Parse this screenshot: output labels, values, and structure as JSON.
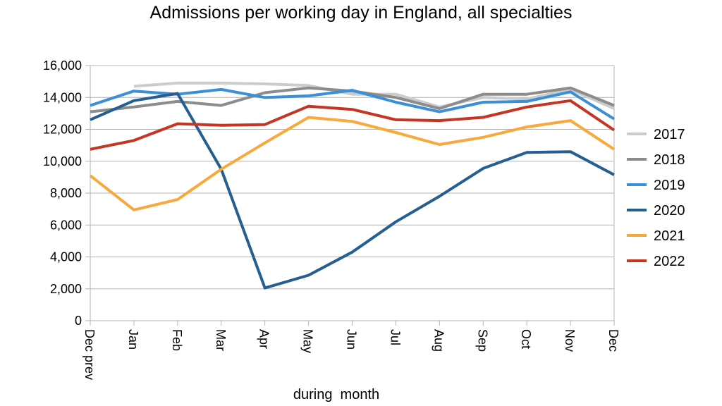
{
  "chart_data": {
    "type": "line",
    "title": "Admissions per working day in England, all specialties",
    "xlabel": "during  month",
    "ylabel": "",
    "ylim": [
      0,
      16000
    ],
    "yticks": [
      "0",
      "2,000",
      "4,000",
      "6,000",
      "8,000",
      "10,000",
      "12,000",
      "14,000",
      "16,000"
    ],
    "grid": true,
    "legend_position": "right",
    "categories": [
      "Dec prev",
      "Jan",
      "Feb",
      "Mar",
      "Apr",
      "May",
      "Jun",
      "Jul",
      "Aug",
      "Sep",
      "Oct",
      "Nov",
      "Dec"
    ],
    "series": [
      {
        "name": "2017",
        "color": "#cccccc",
        "values": [
          null,
          14700,
          14900,
          14900,
          14850,
          14750,
          14200,
          14200,
          13400,
          14000,
          13900,
          14500,
          13300
        ]
      },
      {
        "name": "2018",
        "color": "#8c8c8c",
        "values": [
          13100,
          13400,
          13750,
          13500,
          14300,
          14600,
          14400,
          14000,
          13300,
          14200,
          14200,
          14600,
          13500
        ]
      },
      {
        "name": "2019",
        "color": "#3a8fd8",
        "values": [
          13500,
          14400,
          14200,
          14500,
          14000,
          14100,
          14450,
          13700,
          13100,
          13700,
          13750,
          14350,
          12650
        ]
      },
      {
        "name": "2020",
        "color": "#255e91",
        "values": [
          12600,
          13800,
          14250,
          9500,
          2050,
          2850,
          4300,
          6200,
          7800,
          9550,
          10550,
          10600,
          9150
        ]
      },
      {
        "name": "2021",
        "color": "#f8a93b",
        "values": [
          9100,
          6950,
          7600,
          9500,
          11150,
          12750,
          12500,
          11800,
          11050,
          11500,
          12150,
          12550,
          10750
        ]
      },
      {
        "name": "2022",
        "color": "#c43623",
        "values": [
          10750,
          11300,
          12350,
          12250,
          12300,
          13450,
          13250,
          12600,
          12550,
          12750,
          13400,
          13800,
          11950
        ]
      }
    ]
  }
}
